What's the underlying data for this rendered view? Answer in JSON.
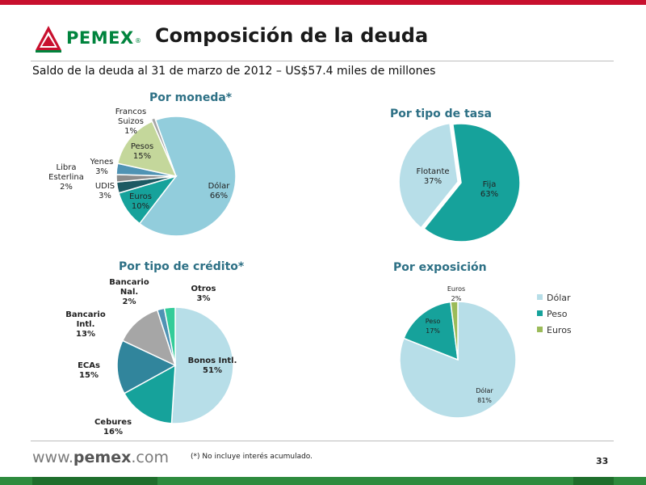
{
  "header": {
    "brand": "PEMEX",
    "brand_mark": "®",
    "title": "Composición de la deuda",
    "subtitle": "Saldo de la deuda al 31 de marzo de 2012 – US$57.4 miles de millones"
  },
  "colors": {
    "accent_red": "#c8102e",
    "brand_green": "#00843d",
    "section_title": "#2d7085"
  },
  "chart_data": [
    {
      "type": "pie",
      "title": "Por moneda*",
      "slices": [
        {
          "label": "Dólar",
          "value": 66,
          "value_label": "66%",
          "color": "#92cddc"
        },
        {
          "label": "Euros",
          "value": 10,
          "value_label": "10%",
          "color": "#16a29b"
        },
        {
          "label": "UDIS",
          "value": 3,
          "value_label": "3%",
          "color": "#1d5a63"
        },
        {
          "label": "Libra Esterlina",
          "value": 2,
          "value_label": "2%",
          "color": "#8c8c8c"
        },
        {
          "label": "Yenes",
          "value": 3,
          "value_label": "3%",
          "color": "#4f93b4"
        },
        {
          "label": "Pesos",
          "value": 15,
          "value_label": "15%",
          "color": "#c4d79b"
        },
        {
          "label": "Francos Suizos",
          "value": 1,
          "value_label": "1%",
          "color": "#a6a6a6"
        }
      ]
    },
    {
      "type": "pie",
      "title": "Por tipo de tasa",
      "slices": [
        {
          "label": "Fija",
          "value": 63,
          "value_label": "63%",
          "color": "#16a29b"
        },
        {
          "label": "Flotante",
          "value": 37,
          "value_label": "37%",
          "color": "#b7dee8"
        }
      ]
    },
    {
      "type": "pie",
      "title": "Por tipo de crédito*",
      "slices": [
        {
          "label": "Bonos Intl.",
          "value": 51,
          "value_label": "51%",
          "color": "#b7dee8"
        },
        {
          "label": "Cebures",
          "value": 16,
          "value_label": "16%",
          "color": "#16a29b"
        },
        {
          "label": "ECAs",
          "value": 15,
          "value_label": "15%",
          "color": "#31859c"
        },
        {
          "label": "Bancario Intl.",
          "value": 13,
          "value_label": "13%",
          "color": "#a6a6a6"
        },
        {
          "label": "Bancario Nal.",
          "value": 2,
          "value_label": "2%",
          "color": "#4f93b4"
        },
        {
          "label": "Otros",
          "value": 3,
          "value_label": "3%",
          "color": "#33cc99"
        }
      ]
    },
    {
      "type": "pie",
      "title": "Por exposición",
      "legend_placement": "right",
      "legend": [
        "Dólar",
        "Peso",
        "Euros"
      ],
      "slices": [
        {
          "label": "Dólar",
          "value": 81,
          "value_label": "81%",
          "color": "#b7dee8"
        },
        {
          "label": "Peso",
          "value": 17,
          "value_label": "17%",
          "color": "#16a29b"
        },
        {
          "label": "Euros",
          "value": 2,
          "value_label": "2%",
          "color": "#9bbb59"
        }
      ]
    }
  ],
  "footer": {
    "website_prefix": "www.",
    "website_brand": "pemex",
    "website_suffix": ".com",
    "footnote": "(*) No incluye interés acumulado.",
    "page_number": "33"
  }
}
